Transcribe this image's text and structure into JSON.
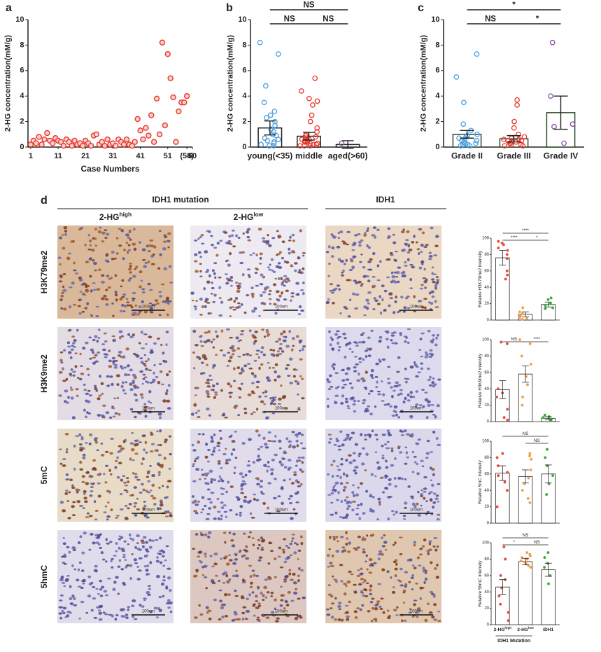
{
  "chart_data": [
    {
      "type": "scatter",
      "panel": "a",
      "xlabel": "Case Numbers",
      "ylabel": "2-HG concentration(mM/g)",
      "color": "#e8352a",
      "x": [
        1,
        2,
        3,
        4,
        5,
        6,
        7,
        8,
        9,
        10,
        11,
        12,
        13,
        14,
        15,
        16,
        17,
        18,
        19,
        20,
        21,
        22,
        23,
        24,
        25,
        26,
        27,
        28,
        29,
        30,
        31,
        32,
        33,
        34,
        35,
        36,
        37,
        38,
        39,
        40,
        41,
        42,
        43,
        44,
        45,
        46,
        47,
        48,
        49,
        50,
        51,
        52,
        53,
        54,
        55,
        56,
        57,
        58
      ],
      "values": [
        0.2,
        0.5,
        0.3,
        0.8,
        0.2,
        0.6,
        1.1,
        0.5,
        0.3,
        0.7,
        0.5,
        0.4,
        0.1,
        0.6,
        0.4,
        0.1,
        0.5,
        0.2,
        0.3,
        0.1,
        0.5,
        0.3,
        0.1,
        0.9,
        1.0,
        0.2,
        0.4,
        0.1,
        0.6,
        0.2,
        0.3,
        0.1,
        0.6,
        0.4,
        0.2,
        0.6,
        0.2,
        0.1,
        0.4,
        2.2,
        1.3,
        0.6,
        1.5,
        0.9,
        2.5,
        0.4,
        3.8,
        1.0,
        8.2,
        1.7,
        7.3,
        5.4,
        3.9,
        0.4,
        2.8,
        3.5,
        3.5,
        4.0
      ],
      "xlim": [
        0,
        60
      ],
      "xticks": [
        1,
        11,
        21,
        31,
        41,
        51,
        {
          "value": 58,
          "label": "(58)"
        },
        60
      ],
      "ylim": [
        0,
        10
      ],
      "yticks": [
        0,
        2,
        4,
        6,
        8,
        10
      ]
    },
    {
      "type": "bar_dot",
      "panel": "b",
      "ylabel": "2-HG concentration(mM/g)",
      "categories": [
        "young(<35)",
        "middle",
        "aged(>60)"
      ],
      "values": [
        1.5,
        0.85,
        0.2
      ],
      "errors": [
        0.55,
        0.3,
        0.3
      ],
      "colors": [
        "#4a9fe0",
        "#e8352a",
        "#8a4aa8"
      ],
      "bar_fill": "#ffffff",
      "bar_stroke": "#222222",
      "points": [
        [
          8.2,
          7.3,
          4.8,
          3.5,
          2.8,
          2.5,
          2.3,
          2.0,
          1.7,
          1.4,
          1.2,
          1.0,
          0.9,
          0.7,
          0.5,
          0.4,
          0.3,
          0.2,
          0.1,
          0.1,
          0.6
        ],
        [
          5.4,
          4.4,
          3.8,
          3.6,
          3.3,
          2.5,
          2.0,
          1.5,
          1.2,
          1.0,
          0.9,
          0.8,
          0.7,
          0.6,
          0.5,
          0.4,
          0.4,
          0.3,
          0.3,
          0.2,
          0.2,
          0.1,
          0.1,
          0.1,
          0.6,
          0.5
        ],
        [
          0.3
        ]
      ],
      "comparisons": [
        {
          "from": 0,
          "to": 1,
          "label": "NS"
        },
        {
          "from": 1,
          "to": 2,
          "label": "NS"
        },
        {
          "from": 0,
          "to": 2,
          "label": "NS"
        }
      ],
      "ylim": [
        0,
        10
      ],
      "yticks": [
        0,
        2,
        4,
        6,
        8,
        10
      ]
    },
    {
      "type": "bar_dot",
      "panel": "c",
      "ylabel": "2-HG concentration(mM/g)",
      "categories": [
        "Grade II",
        "Grade III",
        "Grade IV"
      ],
      "values": [
        1.0,
        0.65,
        2.7
      ],
      "errors": [
        0.3,
        0.25,
        1.3
      ],
      "colors": [
        "#4a9fe0",
        "#e8352a",
        "#8a4aa8"
      ],
      "bar_fill": "#ffffff",
      "bar_stroke": "#2a4a2a",
      "points": [
        [
          7.3,
          5.5,
          3.5,
          1.8,
          1.3,
          1.0,
          0.9,
          0.7,
          0.6,
          0.5,
          0.4,
          0.3,
          0.2,
          0.2,
          0.1,
          0.1,
          0.5,
          0.8,
          0.3
        ],
        [
          3.7,
          3.3,
          2.0,
          1.5,
          1.0,
          0.8,
          0.7,
          0.6,
          0.5,
          0.4,
          0.3,
          0.3,
          0.2,
          0.2,
          0.1,
          0.1,
          0.5,
          0.6,
          0.4
        ],
        [
          8.2,
          4.0,
          1.8,
          1.6,
          0.3
        ]
      ],
      "comparisons": [
        {
          "from": 0,
          "to": 1,
          "label": "NS"
        },
        {
          "from": 1,
          "to": 2,
          "label": "*"
        },
        {
          "from": 0,
          "to": 2,
          "label": "*"
        }
      ],
      "ylim": [
        0,
        10
      ],
      "yticks": [
        0,
        2,
        4,
        6,
        8,
        10
      ]
    },
    {
      "type": "bar_dot",
      "ylabel": "Relative H3K79me2 intensity",
      "values": [
        76,
        7,
        19
      ],
      "errors": [
        9,
        3,
        3
      ],
      "colors": [
        "#e8483a",
        "#f0a050",
        "#3aaa3a"
      ],
      "bar_fill": "#ffffff",
      "bar_stroke": "#222222",
      "points": [
        [
          96,
          94,
          92,
          88,
          85,
          80,
          75,
          60,
          55,
          50
        ],
        [
          15,
          10,
          8,
          5,
          3,
          2,
          1
        ],
        [
          27,
          25,
          20,
          18,
          15,
          14
        ]
      ],
      "comparisons": [
        {
          "from": 0,
          "to": 1,
          "label": "****"
        },
        {
          "from": 1,
          "to": 2,
          "label": "*"
        },
        {
          "from": 0,
          "to": 2,
          "label": "****"
        }
      ],
      "ylim": [
        0,
        100
      ],
      "yticks": [
        0,
        20,
        40,
        60,
        80,
        100
      ]
    },
    {
      "type": "bar_dot",
      "ylabel": "Relative H3K9me2 intensity",
      "values": [
        39,
        58,
        4
      ],
      "errors": [
        11,
        10,
        2
      ],
      "colors": [
        "#e8483a",
        "#f0a050",
        "#3aaa3a"
      ],
      "bar_fill": "#ffffff",
      "bar_stroke": "#222222",
      "points": [
        [
          97,
          95,
          40,
          35,
          30,
          15,
          5,
          2
        ],
        [
          100,
          95,
          80,
          70,
          55,
          45,
          30,
          20
        ],
        [
          8,
          6,
          5,
          3,
          2,
          1
        ]
      ],
      "comparisons": [
        {
          "from": 0,
          "to": 1,
          "label": "NS"
        },
        {
          "from": 1,
          "to": 2,
          "label": "****"
        }
      ],
      "ylim": [
        0,
        100
      ],
      "yticks": [
        0,
        20,
        40,
        60,
        80,
        100
      ]
    },
    {
      "type": "bar_dot",
      "ylabel": "Relative 5mC intensity",
      "values": [
        61,
        57,
        60
      ],
      "errors": [
        9,
        8,
        11
      ],
      "colors": [
        "#e8483a",
        "#f0a050",
        "#3aaa3a"
      ],
      "bar_fill": "#ffffff",
      "bar_stroke": "#222222",
      "points": [
        [
          85,
          80,
          70,
          62,
          58,
          50,
          40,
          20
        ],
        [
          85,
          82,
          78,
          65,
          55,
          48,
          40,
          30,
          25
        ],
        [
          90,
          80,
          70,
          58,
          48,
          35
        ]
      ],
      "comparisons": [
        {
          "from": 1,
          "to": 2,
          "label": "NS"
        },
        {
          "from": 0,
          "to": 2,
          "label": "NS"
        }
      ],
      "ylim": [
        0,
        100
      ],
      "yticks": [
        0,
        20,
        40,
        60,
        80,
        100
      ]
    },
    {
      "type": "bar_dot",
      "ylabel": "Relative 5hmC intensity",
      "categories": [
        {
          "base": "2-HG",
          "sup": "high"
        },
        {
          "base": "2-HG",
          "sup": "low"
        },
        "IDH1"
      ],
      "group_label": "IDH1 Mutation",
      "values": [
        46,
        77,
        67
      ],
      "errors": [
        9,
        4,
        8
      ],
      "colors": [
        "#e8483a",
        "#f0a050",
        "#3aaa3a"
      ],
      "bar_fill": "#ffffff",
      "bar_stroke": "#222222",
      "points": [
        [
          95,
          80,
          60,
          55,
          45,
          35,
          25,
          15,
          5
        ],
        [
          88,
          86,
          84,
          82,
          80,
          78,
          76,
          74,
          72,
          70
        ],
        [
          88,
          82,
          75,
          70,
          60,
          50
        ]
      ],
      "comparisons": [
        {
          "from": 0,
          "to": 1,
          "label": "*"
        },
        {
          "from": 1,
          "to": 2,
          "label": "NS"
        },
        {
          "from": 0,
          "to": 2,
          "label": "NS"
        }
      ],
      "ylim": [
        0,
        100
      ],
      "yticks": [
        0,
        20,
        40,
        60,
        80,
        100
      ]
    }
  ],
  "histology": {
    "panel": "d",
    "groups": [
      "IDH1 mutation",
      "IDH1"
    ],
    "columns": [
      {
        "base": "2-HG",
        "sup": "high"
      },
      {
        "base": "2-HG",
        "sup": "low"
      }
    ],
    "rows": [
      "H3K79me2",
      "H3K9me2",
      "5mC",
      "5hmC"
    ],
    "scale_bar": "100um"
  }
}
